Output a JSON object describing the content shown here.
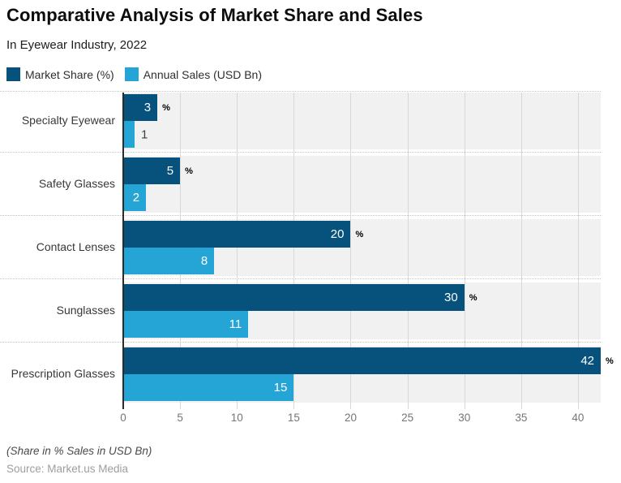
{
  "header": {
    "title": "Comparative Analysis of Market Share and Sales",
    "subtitle": "In Eyewear Industry, 2022"
  },
  "legend": [
    {
      "label": "Market Share (%)",
      "color": "#06527d"
    },
    {
      "label": "Annual Sales (USD Bn)",
      "color": "#25a4d6"
    }
  ],
  "chart_data": {
    "type": "bar",
    "orientation": "horizontal",
    "title": "Comparative Analysis of Market Share and Sales",
    "subtitle": "In Eyewear Industry, 2022",
    "categories": [
      "Specialty Eyewear",
      "Safety Glasses",
      "Contact Lenses",
      "Sunglasses",
      "Prescription Glasses"
    ],
    "series": [
      {
        "name": "Market Share (%)",
        "values": [
          3,
          5,
          20,
          30,
          42
        ],
        "color": "#06527d",
        "value_suffix": "%"
      },
      {
        "name": "Annual Sales (USD Bn)",
        "values": [
          1,
          2,
          8,
          11,
          15
        ],
        "color": "#25a4d6",
        "value_suffix": ""
      }
    ],
    "xlim": [
      0,
      42
    ],
    "x_ticks": [
      0,
      5,
      10,
      15,
      20,
      25,
      30,
      35,
      40
    ],
    "grid": true,
    "legend_position": "top",
    "plot_background": "#f1f1f1",
    "gridline_color": "#d8d8d8",
    "axis_line_color": "#2b2b2b"
  },
  "footer": {
    "note": "(Share in % Sales in USD Bn)",
    "source": "Source: Market.us Media"
  }
}
